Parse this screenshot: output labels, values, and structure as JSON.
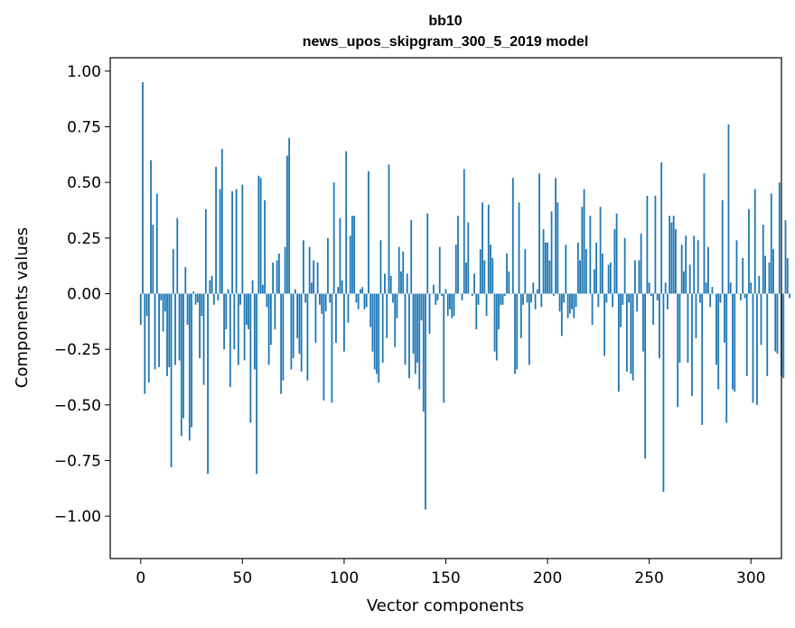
{
  "chart_data": {
    "type": "bar",
    "title": "bb10",
    "subtitle": "news_upos_skipgram_300_5_2019 model",
    "xlabel": "Vector components",
    "ylabel": "Components values",
    "xlim": [
      -15,
      315
    ],
    "ylim": [
      -1.19,
      1.06
    ],
    "xticks": [
      0,
      50,
      100,
      150,
      200,
      250,
      300
    ],
    "xtick_labels": [
      "0",
      "50",
      "100",
      "150",
      "200",
      "250",
      "300"
    ],
    "yticks": [
      -1.0,
      -0.75,
      -0.5,
      -0.25,
      0.0,
      0.25,
      0.5,
      0.75,
      1.0
    ],
    "ytick_labels": [
      "−1.00",
      "−0.75",
      "−0.50",
      "−0.25",
      "0.00",
      "0.25",
      "0.50",
      "0.75",
      "1.00"
    ],
    "bar_color": "#1f77b4",
    "grid": false,
    "series": [
      {
        "x_start": 0,
        "values": [
          -0.14,
          0.95,
          -0.45,
          -0.1,
          -0.4,
          0.6,
          0.31,
          -0.34,
          0.45,
          -0.33,
          -0.03,
          -0.17,
          -0.08,
          -0.37,
          -0.33,
          -0.78,
          0.2,
          -0.32,
          0.34,
          -0.3,
          -0.64,
          -0.56,
          0.12,
          -0.14,
          -0.66,
          -0.6,
          0.01,
          -0.05,
          -0.04,
          -0.29,
          -0.1,
          -0.41,
          0.38,
          -0.81,
          0.06,
          0.08,
          -0.05,
          0.57,
          -0.03,
          0.47,
          0.65,
          -0.25,
          -0.16,
          0.02,
          -0.42,
          0.46,
          -0.25,
          0.47,
          -0.32,
          -0.05,
          0.49,
          -0.3,
          -0.14,
          -0.16,
          -0.58,
          0.06,
          -0.34,
          -0.81,
          0.53,
          0.52,
          0.04,
          0.42,
          -0.06,
          -0.32,
          -0.23,
          0.14,
          -0.16,
          0.15,
          0.18,
          -0.45,
          -0.39,
          0.21,
          0.62,
          0.7,
          -0.34,
          -0.29,
          0.02,
          -0.2,
          -0.27,
          -0.35,
          0.24,
          -0.04,
          -0.39,
          0.21,
          0.05,
          0.15,
          -0.22,
          0.14,
          -0.05,
          -0.09,
          -0.48,
          -0.08,
          0.25,
          -0.04,
          -0.49,
          0.5,
          -0.22,
          0.03,
          0.34,
          0.06,
          -0.26,
          0.64,
          -0.13,
          0.26,
          0.35,
          0.35,
          -0.04,
          -0.07,
          0.02,
          0.03,
          -0.07,
          -0.06,
          0.55,
          -0.15,
          -0.26,
          -0.34,
          -0.36,
          -0.4,
          0.24,
          -0.31,
          0.09,
          -0.2,
          0.58,
          0.08,
          -0.04,
          -0.24,
          -0.11,
          0.21,
          0.1,
          0.19,
          -0.32,
          0.09,
          -0.38,
          0.33,
          -0.27,
          -0.36,
          -0.31,
          -0.43,
          -0.12,
          -0.53,
          -0.97,
          0.36,
          -0.18,
          0.0,
          0.04,
          -0.05,
          -0.03,
          0.21,
          -0.01,
          -0.49,
          0.02,
          -0.1,
          -0.07,
          -0.11,
          -0.1,
          0.22,
          0.35,
          0.0,
          -0.03,
          0.56,
          0.14,
          0.32,
          0.0,
          -0.01,
          0.09,
          -0.16,
          -0.05,
          0.2,
          0.41,
          0.15,
          -0.1,
          0.4,
          0.22,
          0.16,
          -0.26,
          -0.3,
          -0.16,
          -0.05,
          -0.05,
          -0.01,
          0.18,
          0.1,
          0.0,
          0.52,
          -0.36,
          -0.34,
          0.41,
          -0.2,
          -0.05,
          0.2,
          -0.04,
          -0.32,
          -0.04,
          0.05,
          -0.07,
          0.02,
          0.54,
          -0.06,
          0.29,
          0.23,
          0.23,
          0.15,
          0.37,
          -0.01,
          0.52,
          0.41,
          -0.08,
          -0.19,
          -0.04,
          0.22,
          -0.11,
          -0.09,
          -0.07,
          -0.11,
          -0.06,
          0.23,
          0.15,
          0.39,
          0.47,
          0.2,
          0.0,
          0.35,
          -0.14,
          0.11,
          0.23,
          -0.06,
          0.39,
          0.18,
          -0.28,
          -0.04,
          0.13,
          0.14,
          -0.06,
          0.29,
          0.36,
          -0.44,
          -0.15,
          -0.05,
          0.25,
          -0.35,
          -0.04,
          -0.36,
          -0.39,
          0.15,
          -0.08,
          0.15,
          0.27,
          -0.26,
          -0.74,
          0.44,
          0.05,
          -0.01,
          -0.14,
          0.44,
          -0.03,
          -0.29,
          0.59,
          -0.89,
          0.05,
          -0.07,
          0.35,
          0.32,
          0.35,
          0.29,
          -0.51,
          -0.31,
          0.22,
          0.1,
          0.26,
          -0.31,
          0.13,
          -0.46,
          0.26,
          -0.2,
          0.24,
          -0.04,
          -0.59,
          0.54,
          0.05,
          0.21,
          -0.06,
          0.03,
          0.0,
          -0.32,
          -0.43,
          -0.04,
          0.42,
          -0.22,
          -0.58,
          0.76,
          0.05,
          -0.43,
          -0.44,
          0.24,
          0.0,
          -0.03,
          0.16,
          -0.02,
          -0.37,
          0.38,
          0.05,
          -0.49,
          0.47,
          -0.5,
          0.08,
          -0.23,
          0.31,
          0.17,
          -0.37,
          0.14,
          0.45,
          0.2,
          -0.26,
          -0.27,
          0.5,
          -0.37,
          -0.38,
          0.33,
          0.16,
          -0.02
        ]
      }
    ]
  }
}
